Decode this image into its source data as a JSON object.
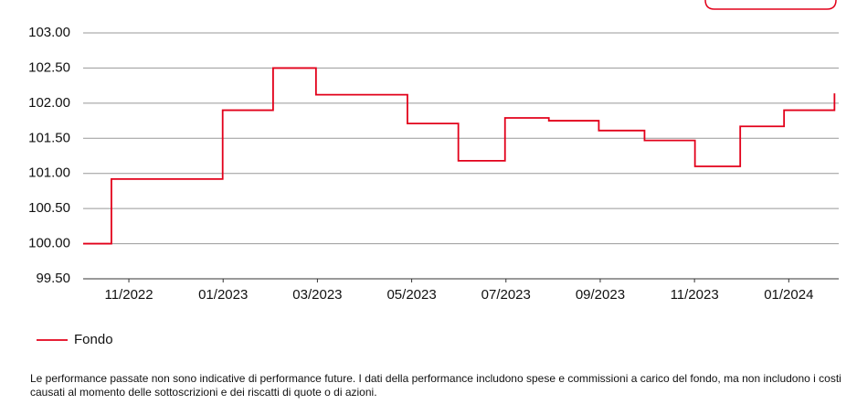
{
  "chart_data": {
    "type": "line",
    "step": "post",
    "x": [
      -0.97,
      -0.37,
      1.99,
      3.06,
      3.97,
      5.91,
      6.99,
      7.98,
      8.91,
      9.97,
      10.94,
      12.01,
      12.97,
      13.9,
      14.97
    ],
    "series": [
      {
        "name": "Fondo",
        "color": "#e2001a",
        "values": [
          100.0,
          100.92,
          101.9,
          102.5,
          102.12,
          101.71,
          101.18,
          101.79,
          101.75,
          101.61,
          101.47,
          101.1,
          101.67,
          101.9,
          102.14
        ]
      }
    ],
    "xlim": [
      -0.97,
      15.06
    ],
    "xticks": [
      {
        "value": 0,
        "label": "11/2022"
      },
      {
        "value": 2,
        "label": "01/2023"
      },
      {
        "value": 4,
        "label": "03/2023"
      },
      {
        "value": 6,
        "label": "05/2023"
      },
      {
        "value": 8,
        "label": "07/2023"
      },
      {
        "value": 10,
        "label": "09/2023"
      },
      {
        "value": 12,
        "label": "11/2023"
      },
      {
        "value": 14,
        "label": "01/2024"
      }
    ],
    "ylim": [
      99.5,
      103.0
    ],
    "yticks": [
      {
        "value": 99.5,
        "label": "99.50"
      },
      {
        "value": 100,
        "label": "100.00"
      },
      {
        "value": 100.5,
        "label": "100.50"
      },
      {
        "value": 101,
        "label": "101.00"
      },
      {
        "value": 101.5,
        "label": "101.50"
      },
      {
        "value": 102,
        "label": "102.00"
      },
      {
        "value": 102.5,
        "label": "102.50"
      },
      {
        "value": 103,
        "label": "103.00"
      }
    ],
    "grid": true,
    "note": "Le performance passate non sono indicative di performance future. I dati della performance includono spese e commissioni a carico del fondo, ma non includono i costi causati al momento delle sottoscrizioni e dei riscatti di quote o di azioni."
  }
}
